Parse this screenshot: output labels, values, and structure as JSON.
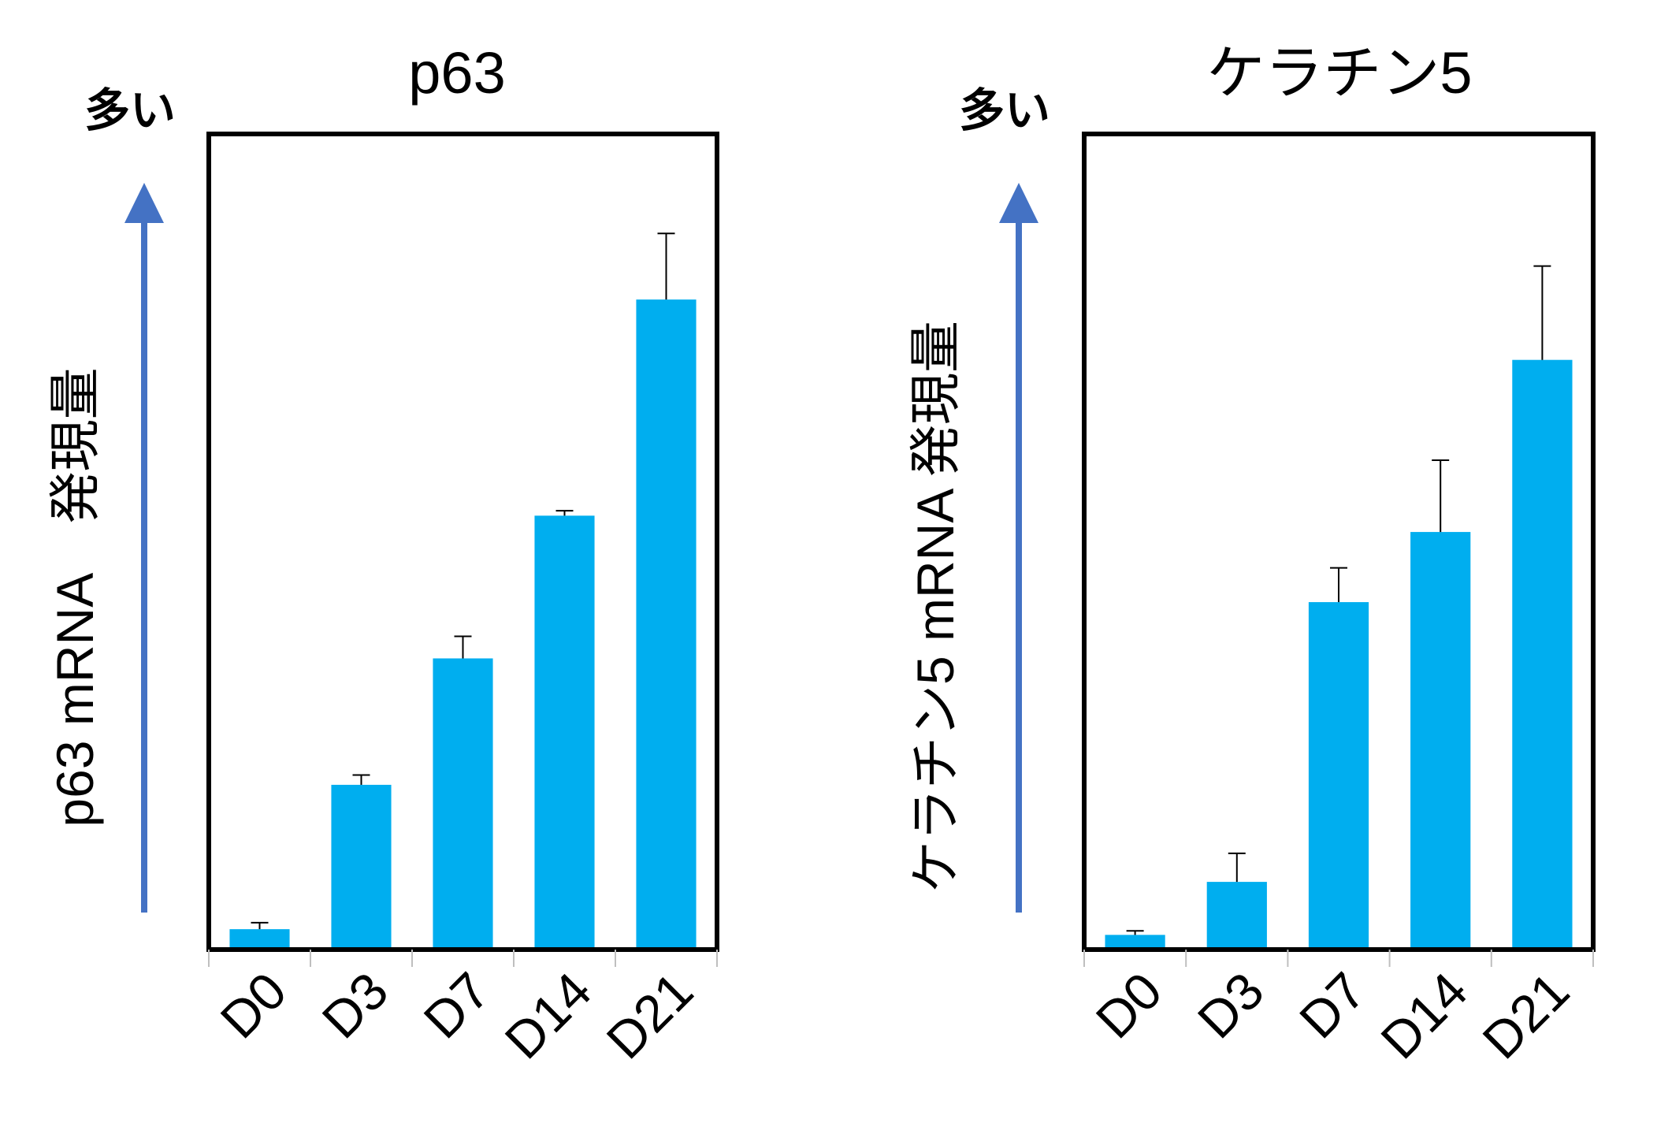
{
  "colors": {
    "bar": "#00AEEF",
    "arrow": "#4472C4",
    "frame": "#000000",
    "errorbar": "#000000"
  },
  "chart_data": [
    {
      "type": "bar",
      "title": "p63",
      "ylabel": "p63 mRNA　発現量",
      "more_label": "多い",
      "categories": [
        "D0",
        "D3",
        "D7",
        "D14",
        "D21"
      ],
      "values": [
        0.025,
        0.202,
        0.357,
        0.532,
        0.797
      ],
      "errors": [
        0.008,
        0.012,
        0.027,
        0.006,
        0.081
      ],
      "ylim": [
        0,
        1
      ],
      "grid": false,
      "legend": "none"
    },
    {
      "type": "bar",
      "title": "ケラチン5",
      "ylabel": "ケラチン5 mRNA 発現量",
      "more_label": "多い",
      "categories": [
        "D0",
        "D3",
        "D7",
        "D14",
        "D21"
      ],
      "values": [
        0.018,
        0.083,
        0.426,
        0.512,
        0.723
      ],
      "errors": [
        0.005,
        0.035,
        0.042,
        0.088,
        0.115
      ],
      "ylim": [
        0,
        1
      ],
      "grid": false,
      "legend": "none"
    }
  ]
}
